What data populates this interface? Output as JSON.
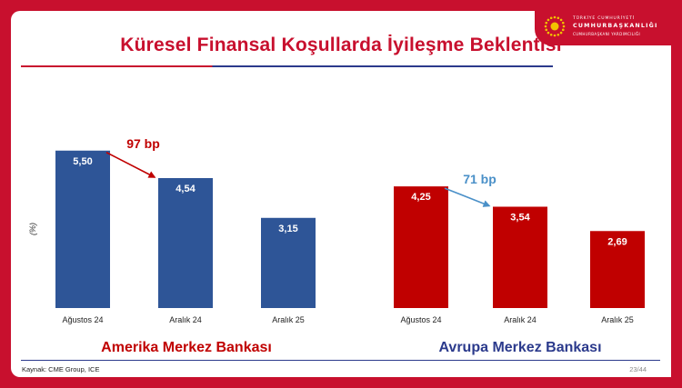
{
  "institution": {
    "line1": "TÜRKİYE CUMHURİYETİ",
    "line2": "CUMHURBAŞKANLIĞI",
    "line3": "CUMHURBAŞKANI YARDIMCILIĞI"
  },
  "slide": {
    "title": "Küresel Finansal Koşullarda İyileşme Beklentisi",
    "source": "Kaynak: CME Group, ICE",
    "page": "23/44"
  },
  "colors": {
    "brand_red": "#c8102e",
    "bar_blue": "#2e5597",
    "bar_red": "#c00000",
    "arrow_blue": "#4a90c8",
    "rule_blue": "#2b3a8c"
  },
  "chart_data": [
    {
      "type": "bar",
      "title": "Amerika Merkez Bankası",
      "ylabel": "(%)",
      "categories": [
        "Ağustos 24",
        "Aralık 24",
        "Aralık 25"
      ],
      "values": [
        5.5,
        4.54,
        3.15
      ],
      "value_labels": [
        "5,50",
        "4,54",
        "3,15"
      ],
      "annotation": "97 bp",
      "color": "#2e5597",
      "ylim": [
        0,
        7
      ]
    },
    {
      "type": "bar",
      "title": "Avrupa Merkez Bankası",
      "ylabel": "",
      "categories": [
        "Ağustos 24",
        "Aralık 24",
        "Aralık 25"
      ],
      "values": [
        4.25,
        3.54,
        2.69
      ],
      "value_labels": [
        "4,25",
        "3,54",
        "2,69"
      ],
      "annotation": "71 bp",
      "color": "#c00000",
      "ylim": [
        0,
        7
      ]
    }
  ]
}
